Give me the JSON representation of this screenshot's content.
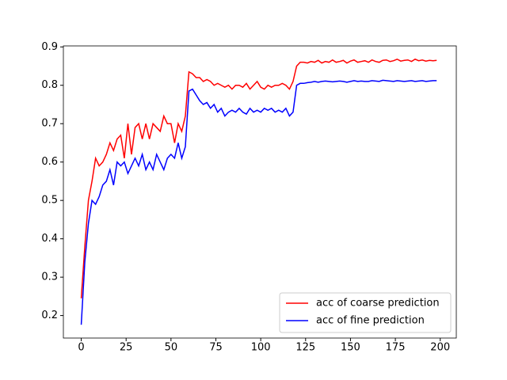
{
  "chart_data": {
    "type": "line",
    "x": [
      0,
      2,
      4,
      6,
      8,
      10,
      12,
      14,
      16,
      18,
      20,
      22,
      24,
      26,
      28,
      30,
      32,
      34,
      36,
      38,
      40,
      42,
      44,
      46,
      48,
      50,
      52,
      54,
      56,
      58,
      60,
      62,
      64,
      66,
      68,
      70,
      72,
      74,
      76,
      78,
      80,
      82,
      84,
      86,
      88,
      90,
      92,
      94,
      96,
      98,
      100,
      102,
      104,
      106,
      108,
      110,
      112,
      114,
      116,
      118,
      120,
      122,
      124,
      126,
      128,
      130,
      132,
      134,
      136,
      138,
      140,
      142,
      144,
      146,
      148,
      150,
      152,
      154,
      156,
      158,
      160,
      162,
      164,
      166,
      168,
      170,
      172,
      174,
      176,
      178,
      180,
      182,
      184,
      186,
      188,
      190,
      192,
      194,
      196,
      198
    ],
    "series": [
      {
        "name": "acc of coarse prediction",
        "color": "#ff0000",
        "values": [
          0.245,
          0.38,
          0.5,
          0.55,
          0.61,
          0.59,
          0.6,
          0.62,
          0.65,
          0.63,
          0.66,
          0.67,
          0.61,
          0.7,
          0.62,
          0.69,
          0.7,
          0.66,
          0.7,
          0.66,
          0.7,
          0.69,
          0.68,
          0.72,
          0.7,
          0.7,
          0.65,
          0.7,
          0.68,
          0.72,
          0.835,
          0.83,
          0.82,
          0.82,
          0.81,
          0.815,
          0.81,
          0.8,
          0.805,
          0.8,
          0.795,
          0.8,
          0.79,
          0.8,
          0.8,
          0.795,
          0.805,
          0.79,
          0.8,
          0.81,
          0.795,
          0.79,
          0.8,
          0.795,
          0.8,
          0.8,
          0.805,
          0.8,
          0.79,
          0.81,
          0.85,
          0.86,
          0.86,
          0.858,
          0.862,
          0.86,
          0.865,
          0.858,
          0.862,
          0.86,
          0.866,
          0.86,
          0.862,
          0.865,
          0.858,
          0.863,
          0.866,
          0.86,
          0.862,
          0.864,
          0.86,
          0.866,
          0.862,
          0.86,
          0.865,
          0.866,
          0.862,
          0.864,
          0.868,
          0.863,
          0.865,
          0.866,
          0.862,
          0.868,
          0.864,
          0.866,
          0.863,
          0.865,
          0.864,
          0.865
        ]
      },
      {
        "name": "acc of fine prediction",
        "color": "#0000ff",
        "values": [
          0.176,
          0.34,
          0.44,
          0.5,
          0.49,
          0.51,
          0.54,
          0.55,
          0.58,
          0.54,
          0.6,
          0.59,
          0.6,
          0.57,
          0.59,
          0.61,
          0.59,
          0.62,
          0.58,
          0.6,
          0.58,
          0.62,
          0.6,
          0.58,
          0.61,
          0.62,
          0.61,
          0.65,
          0.61,
          0.64,
          0.785,
          0.79,
          0.775,
          0.76,
          0.75,
          0.755,
          0.74,
          0.75,
          0.73,
          0.74,
          0.72,
          0.73,
          0.735,
          0.73,
          0.74,
          0.73,
          0.725,
          0.74,
          0.73,
          0.735,
          0.73,
          0.74,
          0.735,
          0.74,
          0.73,
          0.735,
          0.73,
          0.74,
          0.72,
          0.73,
          0.8,
          0.805,
          0.805,
          0.807,
          0.808,
          0.81,
          0.808,
          0.81,
          0.811,
          0.81,
          0.809,
          0.81,
          0.811,
          0.81,
          0.808,
          0.81,
          0.812,
          0.81,
          0.811,
          0.81,
          0.81,
          0.812,
          0.811,
          0.81,
          0.813,
          0.812,
          0.811,
          0.81,
          0.812,
          0.811,
          0.81,
          0.811,
          0.812,
          0.81,
          0.811,
          0.812,
          0.81,
          0.811,
          0.812,
          0.812
        ]
      }
    ],
    "xlim": [
      -9.95,
      208.95
    ],
    "ylim": [
      0.1414,
      0.9026
    ],
    "xticks": [
      0,
      25,
      50,
      75,
      100,
      125,
      150,
      175,
      200
    ],
    "yticks": [
      0.2,
      0.3,
      0.4,
      0.5,
      0.6,
      0.7,
      0.8,
      0.9
    ],
    "legend": "lower right"
  }
}
